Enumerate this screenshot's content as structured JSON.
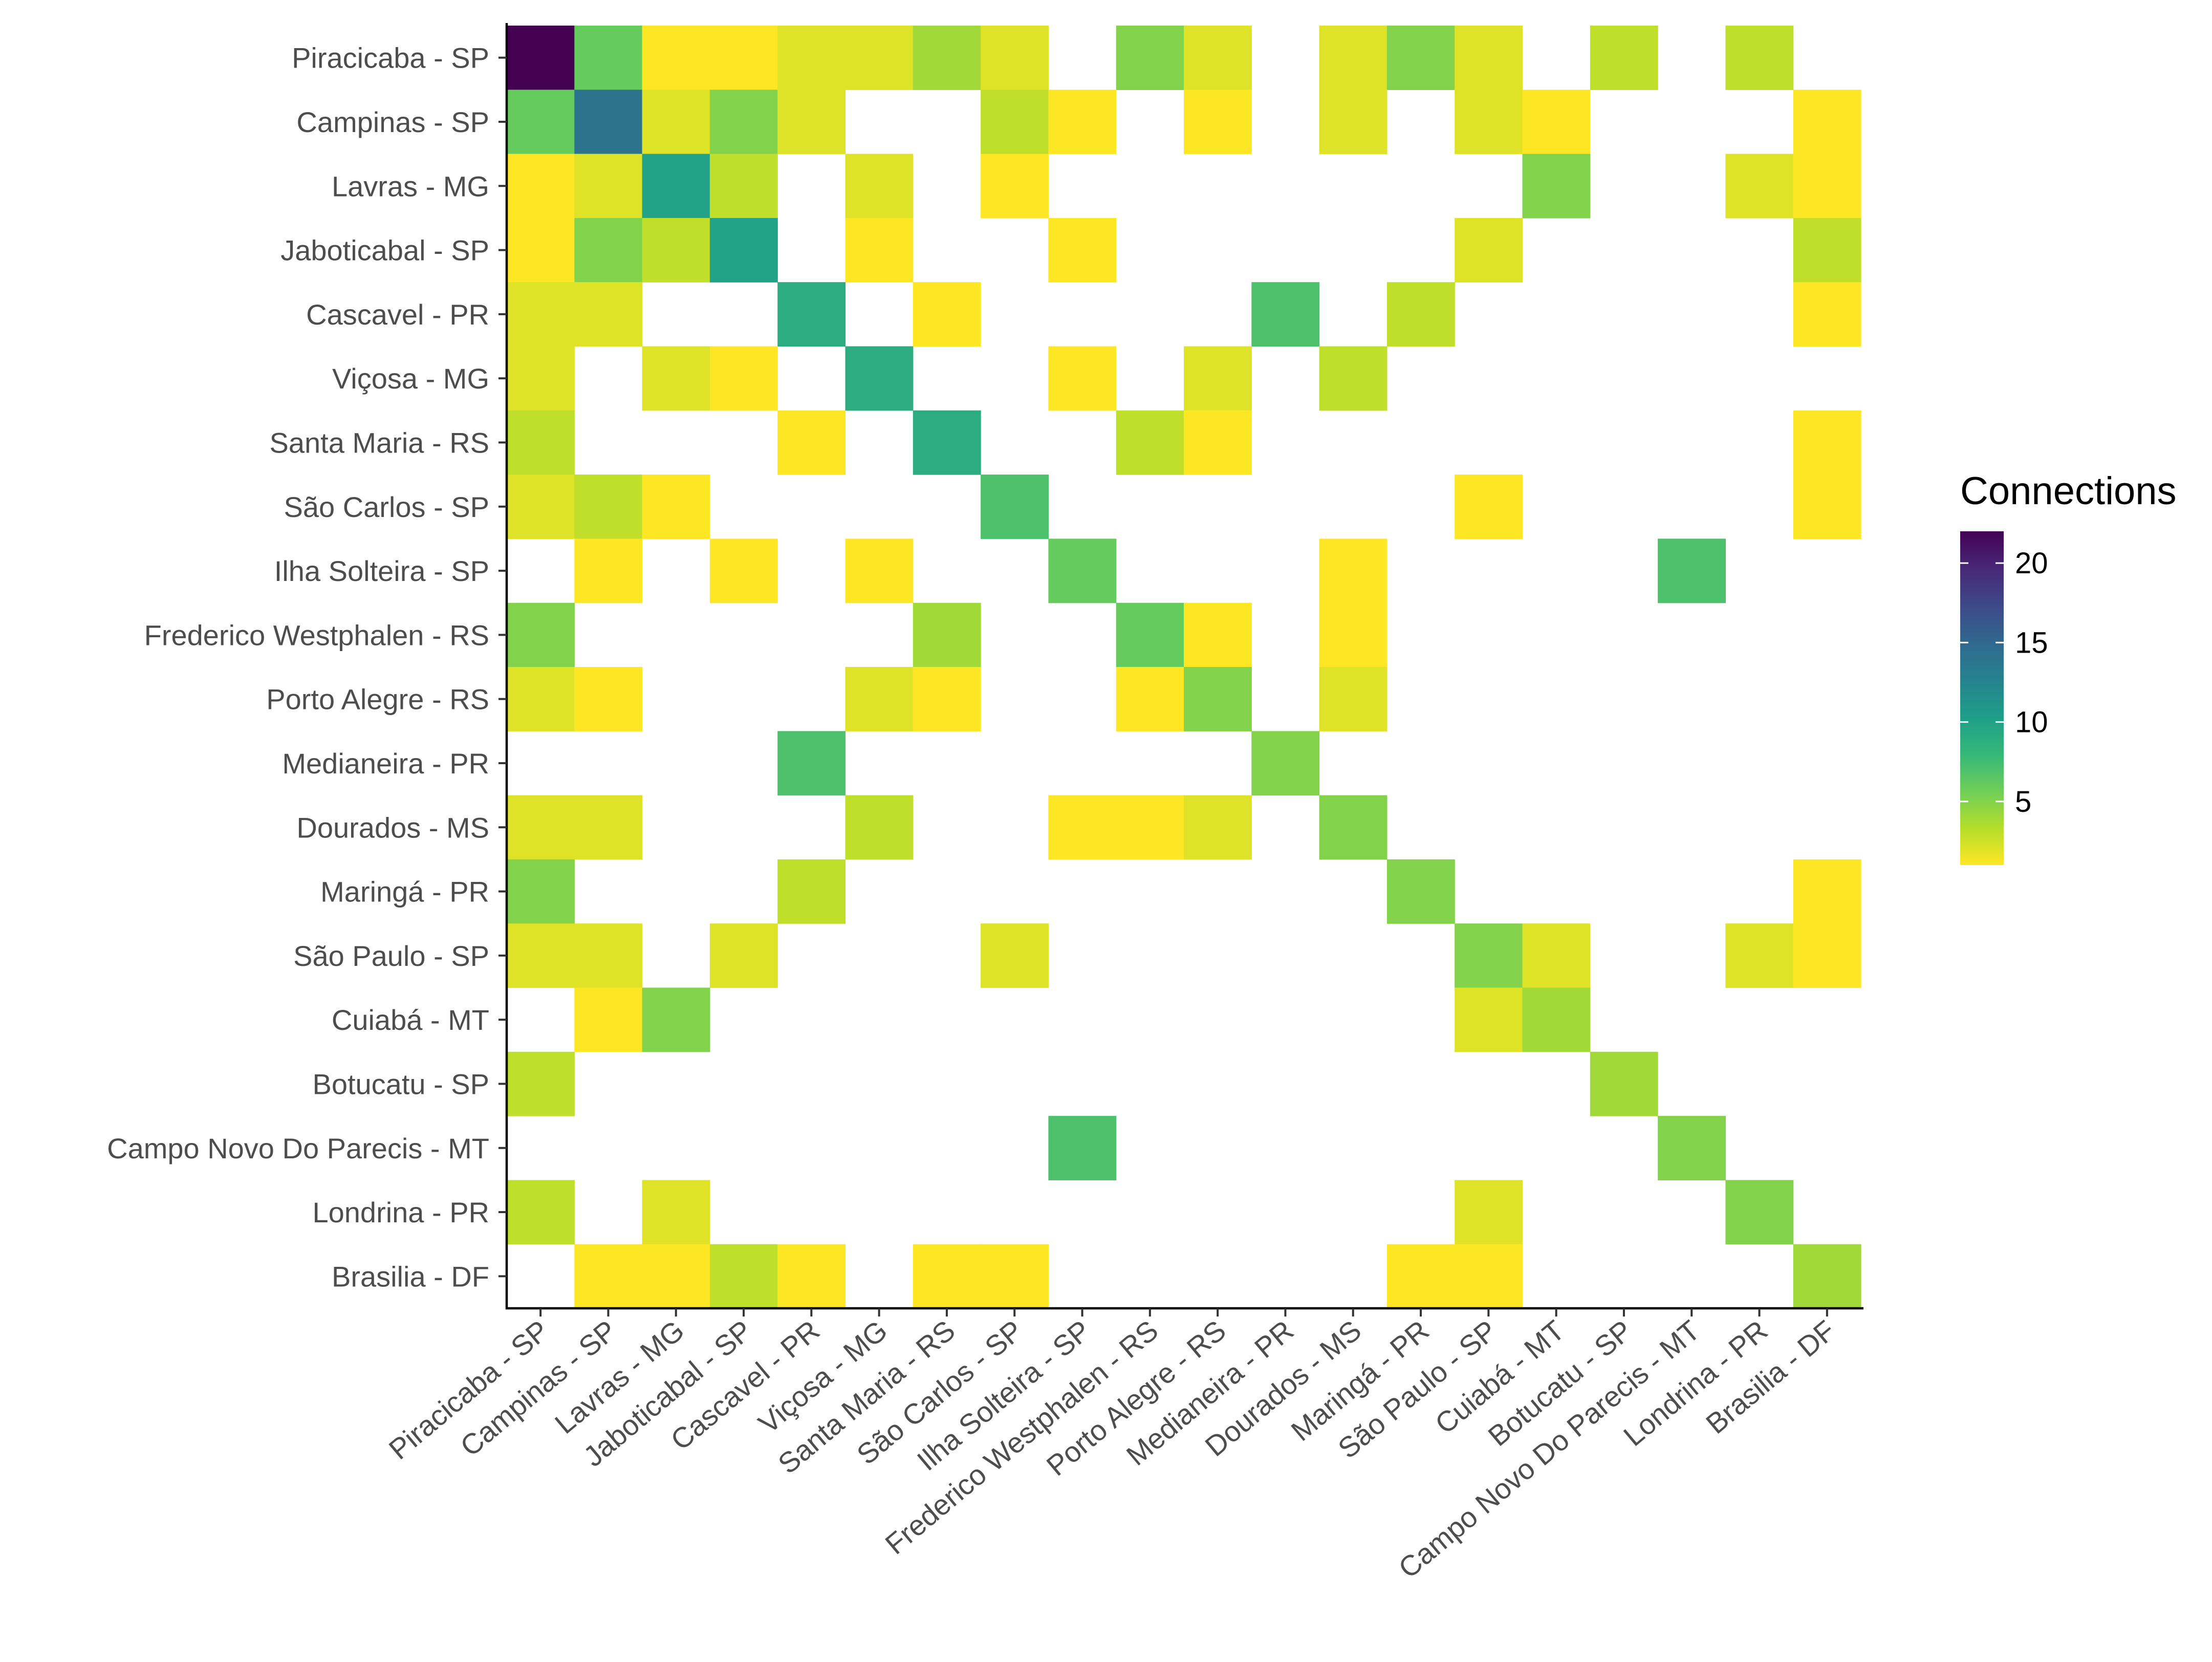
{
  "chart_data": {
    "type": "heatmap",
    "title": "",
    "xlabel": "",
    "ylabel": "",
    "categories": [
      "Piracicaba - SP",
      "Campinas - SP",
      "Lavras - MG",
      "Jaboticabal - SP",
      "Cascavel - PR",
      "Viçosa - MG",
      "Santa Maria - RS",
      "São Carlos - SP",
      "Ilha Solteira - SP",
      "Frederico Westphalen - RS",
      "Porto Alegre - RS",
      "Medianeira - PR",
      "Dourados - MS",
      "Maringá - PR",
      "São Paulo - SP",
      "Cuiabá - MT",
      "Botucatu - SP",
      "Campo Novo Do Parecis - MT",
      "Londrina - PR",
      "Brasilia - DF"
    ],
    "legend": {
      "title": "Connections",
      "ticks": [
        20,
        15,
        10,
        5
      ],
      "range": [
        1,
        22
      ],
      "position": "right",
      "palette": [
        "#fde725",
        "#b5de2b",
        "#6ece58",
        "#35b779",
        "#1f9e89",
        "#26828e",
        "#31688e",
        "#3e4989",
        "#482878",
        "#440154"
      ]
    },
    "cells": [
      {
        "row": "Piracicaba - SP",
        "values": {
          "Piracicaba - SP": 22,
          "Campinas - SP": 6,
          "Lavras - MG": 1,
          "Jaboticabal - SP": 1,
          "Cascavel - PR": 2,
          "Viçosa - MG": 2,
          "Santa Maria - RS": 4,
          "São Carlos - SP": 2,
          "Frederico Westphalen - RS": 5,
          "Porto Alegre - RS": 2,
          "Dourados - MS": 2,
          "Maringá - PR": 5,
          "São Paulo - SP": 2,
          "Botucatu - SP": 3,
          "Londrina - PR": 3
        }
      },
      {
        "row": "Campinas - SP",
        "values": {
          "Piracicaba - SP": 6,
          "Campinas - SP": 14,
          "Lavras - MG": 2,
          "Jaboticabal - SP": 5,
          "Cascavel - PR": 2,
          "São Carlos - SP": 3,
          "Ilha Solteira - SP": 1,
          "Porto Alegre - RS": 1,
          "Dourados - MS": 2,
          "São Paulo - SP": 2,
          "Cuiabá - MT": 1,
          "Brasilia - DF": 1
        }
      },
      {
        "row": "Lavras - MG",
        "values": {
          "Piracicaba - SP": 1,
          "Campinas - SP": 2,
          "Lavras - MG": 10,
          "Jaboticabal - SP": 3,
          "Viçosa - MG": 2,
          "São Carlos - SP": 1,
          "Cuiabá - MT": 5,
          "Londrina - PR": 2,
          "Brasilia - DF": 1
        }
      },
      {
        "row": "Jaboticabal - SP",
        "values": {
          "Piracicaba - SP": 1,
          "Campinas - SP": 5,
          "Lavras - MG": 3,
          "Jaboticabal - SP": 10,
          "Viçosa - MG": 1,
          "Ilha Solteira - SP": 1,
          "São Paulo - SP": 2,
          "Brasilia - DF": 3
        }
      },
      {
        "row": "Cascavel - PR",
        "values": {
          "Piracicaba - SP": 2,
          "Campinas - SP": 2,
          "Cascavel - PR": 9,
          "Santa Maria - RS": 1,
          "Medianeira - PR": 7,
          "Maringá - PR": 3,
          "Brasilia - DF": 1
        }
      },
      {
        "row": "Viçosa - MG",
        "values": {
          "Piracicaba - SP": 2,
          "Lavras - MG": 2,
          "Jaboticabal - SP": 1,
          "Viçosa - MG": 9,
          "Ilha Solteira - SP": 1,
          "Porto Alegre - RS": 2,
          "Dourados - MS": 3
        }
      },
      {
        "row": "Santa Maria - RS",
        "values": {
          "Piracicaba - SP": 3,
          "Cascavel - PR": 1,
          "Santa Maria - RS": 9,
          "Frederico Westphalen - RS": 3,
          "Porto Alegre - RS": 1,
          "Brasilia - DF": 1
        }
      },
      {
        "row": "São Carlos - SP",
        "values": {
          "Piracicaba - SP": 2,
          "Campinas - SP": 3,
          "Lavras - MG": 1,
          "São Carlos - SP": 7,
          "São Paulo - SP": 1,
          "Brasilia - DF": 1
        }
      },
      {
        "row": "Ilha Solteira - SP",
        "values": {
          "Campinas - SP": 1,
          "Jaboticabal - SP": 1,
          "Viçosa - MG": 1,
          "Ilha Solteira - SP": 6,
          "Dourados - MS": 1,
          "Campo Novo Do Parecis - MT": 7
        }
      },
      {
        "row": "Frederico Westphalen - RS",
        "values": {
          "Piracicaba - SP": 5,
          "Santa Maria - RS": 4,
          "Frederico Westphalen - RS": 6,
          "Porto Alegre - RS": 1,
          "Dourados - MS": 1
        }
      },
      {
        "row": "Porto Alegre - RS",
        "values": {
          "Piracicaba - SP": 2,
          "Campinas - SP": 1,
          "Viçosa - MG": 2,
          "Santa Maria - RS": 1,
          "Frederico Westphalen - RS": 1,
          "Porto Alegre - RS": 5,
          "Dourados - MS": 2
        }
      },
      {
        "row": "Medianeira - PR",
        "values": {
          "Cascavel - PR": 7,
          "Medianeira - PR": 5
        }
      },
      {
        "row": "Dourados - MS",
        "values": {
          "Piracicaba - SP": 2,
          "Campinas - SP": 2,
          "Viçosa - MG": 3,
          "Ilha Solteira - SP": 1,
          "Frederico Westphalen - RS": 1,
          "Porto Alegre - RS": 2,
          "Dourados - MS": 5
        }
      },
      {
        "row": "Maringá - PR",
        "values": {
          "Piracicaba - SP": 5,
          "Cascavel - PR": 3,
          "Maringá - PR": 5,
          "Brasilia - DF": 1
        }
      },
      {
        "row": "São Paulo - SP",
        "values": {
          "Piracicaba - SP": 2,
          "Campinas - SP": 2,
          "Jaboticabal - SP": 2,
          "São Carlos - SP": 2,
          "São Paulo - SP": 5,
          "Cuiabá - MT": 2,
          "Londrina - PR": 2,
          "Brasilia - DF": 1
        }
      },
      {
        "row": "Cuiabá - MT",
        "values": {
          "Campinas - SP": 1,
          "Lavras - MG": 5,
          "São Paulo - SP": 2,
          "Cuiabá - MT": 4
        }
      },
      {
        "row": "Botucatu - SP",
        "values": {
          "Piracicaba - SP": 3,
          "Botucatu - SP": 4
        }
      },
      {
        "row": "Campo Novo Do Parecis - MT",
        "values": {
          "Ilha Solteira - SP": 7,
          "Campo Novo Do Parecis - MT": 5
        }
      },
      {
        "row": "Londrina - PR",
        "values": {
          "Piracicaba - SP": 3,
          "Lavras - MG": 2,
          "São Paulo - SP": 2,
          "Londrina - PR": 5
        }
      },
      {
        "row": "Brasilia - DF",
        "values": {
          "Campinas - SP": 1,
          "Lavras - MG": 1,
          "Jaboticabal - SP": 3,
          "Cascavel - PR": 1,
          "Santa Maria - RS": 1,
          "São Carlos - SP": 1,
          "Maringá - PR": 1,
          "São Paulo - SP": 1,
          "Brasilia - DF": 4
        }
      }
    ]
  }
}
